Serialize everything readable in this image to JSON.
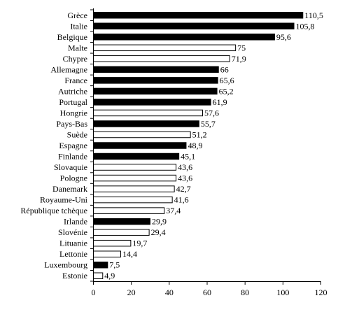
{
  "chart_data": {
    "type": "bar",
    "orientation": "horizontal",
    "categories": [
      "Grèce",
      "Italie",
      "Belgique",
      "Malte",
      "Chypre",
      "Allemagne",
      "France",
      "Autriche",
      "Portugal",
      "Hongrie",
      "Pays-Bas",
      "Suède",
      "Espagne",
      "Finlande",
      "Slovaquie",
      "Pologne",
      "Danemark",
      "Royaume-Uni",
      "République tchèque",
      "Irlande",
      "Slovénie",
      "Lituanie",
      "Lettonie",
      "Luxembourg",
      "Estonie"
    ],
    "values": [
      110.5,
      105.8,
      95.6,
      75,
      71.9,
      66,
      65.6,
      65.2,
      61.9,
      57.6,
      55.7,
      51.2,
      48.9,
      45.1,
      43.6,
      43.6,
      42.7,
      41.6,
      37.4,
      29.9,
      29.4,
      19.7,
      14.4,
      7.5,
      4.9
    ],
    "value_labels": [
      "110,5",
      "105,8",
      "95,6",
      "75",
      "71,9",
      "66",
      "65,6",
      "65,2",
      "61,9",
      "57,6",
      "55,7",
      "51,2",
      "48,9",
      "45,1",
      "43,6",
      "43,6",
      "42,7",
      "41,6",
      "37,4",
      "29,9",
      "29,4",
      "19,7",
      "14,4",
      "7,5",
      "4,9"
    ],
    "filled": [
      true,
      true,
      true,
      false,
      false,
      true,
      true,
      true,
      true,
      false,
      true,
      false,
      true,
      true,
      false,
      false,
      false,
      false,
      false,
      true,
      false,
      false,
      false,
      true,
      false
    ],
    "fill_color": "#000000",
    "empty_color": "#ffffff",
    "xlim": [
      0,
      120
    ],
    "xticks": [
      0,
      20,
      40,
      60,
      80,
      100,
      120
    ],
    "grid": false,
    "title": "",
    "xlabel": "",
    "ylabel": ""
  }
}
